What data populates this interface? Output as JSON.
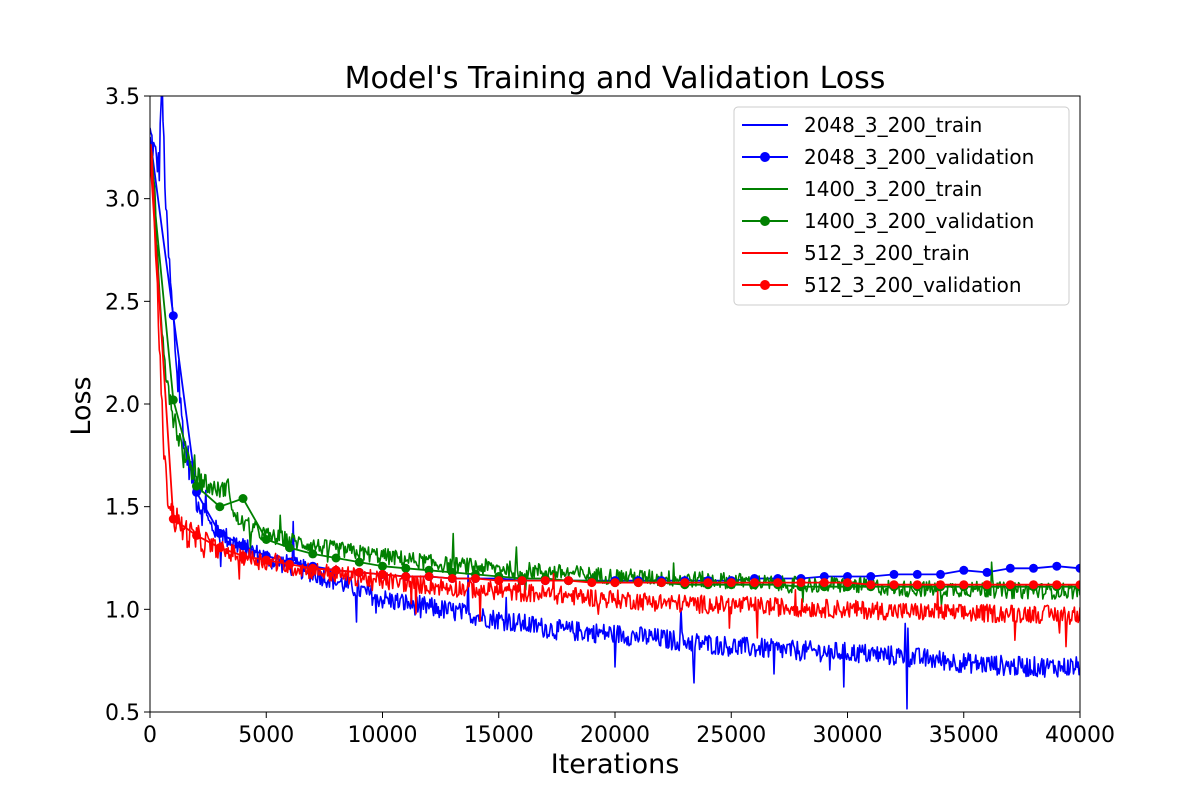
{
  "chart_data": {
    "type": "line",
    "title": "Model's Training and Validation Loss",
    "xlabel": "Iterations",
    "ylabel": "Loss",
    "xlim": [
      0,
      40000
    ],
    "ylim": [
      0.5,
      3.5
    ],
    "xticks": [
      0,
      5000,
      10000,
      15000,
      20000,
      25000,
      30000,
      35000,
      40000
    ],
    "xtick_labels": [
      "0",
      "5000",
      "10000",
      "15000",
      "20000",
      "25000",
      "30000",
      "35000",
      "40000"
    ],
    "yticks": [
      0.5,
      1.0,
      1.5,
      2.0,
      2.5,
      3.0,
      3.5
    ],
    "ytick_labels": [
      "0.5",
      "1.0",
      "1.5",
      "2.0",
      "2.5",
      "3.0",
      "3.5"
    ],
    "grid": false,
    "legend_position": "top-right",
    "series": [
      {
        "name": "2048_3_200_train",
        "color": "#0000ff",
        "marker": "none",
        "kind": "train",
        "noise": 0.05,
        "spikes": 0.16,
        "values": [
          [
            0,
            3.32
          ],
          [
            200,
            3.22
          ],
          [
            400,
            3.15
          ],
          [
            500,
            3.6
          ],
          [
            700,
            2.9
          ],
          [
            900,
            2.55
          ],
          [
            1200,
            2.1
          ],
          [
            1500,
            1.8
          ],
          [
            2000,
            1.55
          ],
          [
            2500,
            1.42
          ],
          [
            3000,
            1.37
          ],
          [
            4000,
            1.3
          ],
          [
            5000,
            1.25
          ],
          [
            7500,
            1.16
          ],
          [
            10000,
            1.05
          ],
          [
            12500,
            1.0
          ],
          [
            15000,
            0.95
          ],
          [
            17500,
            0.9
          ],
          [
            20000,
            0.88
          ],
          [
            22500,
            0.85
          ],
          [
            25000,
            0.82
          ],
          [
            27500,
            0.8
          ],
          [
            30000,
            0.79
          ],
          [
            32500,
            0.77
          ],
          [
            35000,
            0.74
          ],
          [
            37500,
            0.72
          ],
          [
            40000,
            0.72
          ]
        ]
      },
      {
        "name": "2048_3_200_validation",
        "color": "#0000ff",
        "marker": "circle",
        "kind": "validation",
        "values": [
          [
            0,
            3.3
          ],
          [
            1000,
            2.43
          ],
          [
            2000,
            1.57
          ],
          [
            3000,
            1.37
          ],
          [
            4000,
            1.31
          ],
          [
            5000,
            1.26
          ],
          [
            6000,
            1.23
          ],
          [
            7000,
            1.21
          ],
          [
            8000,
            1.19
          ],
          [
            9000,
            1.18
          ],
          [
            10000,
            1.17
          ],
          [
            11000,
            1.16
          ],
          [
            12000,
            1.16
          ],
          [
            13000,
            1.15
          ],
          [
            14000,
            1.15
          ],
          [
            15000,
            1.15
          ],
          [
            16000,
            1.14
          ],
          [
            17000,
            1.14
          ],
          [
            18000,
            1.14
          ],
          [
            19000,
            1.14
          ],
          [
            20000,
            1.14
          ],
          [
            21000,
            1.14
          ],
          [
            22000,
            1.14
          ],
          [
            23000,
            1.14
          ],
          [
            24000,
            1.14
          ],
          [
            25000,
            1.14
          ],
          [
            26000,
            1.15
          ],
          [
            27000,
            1.15
          ],
          [
            28000,
            1.15
          ],
          [
            29000,
            1.16
          ],
          [
            30000,
            1.16
          ],
          [
            31000,
            1.16
          ],
          [
            32000,
            1.17
          ],
          [
            33000,
            1.17
          ],
          [
            34000,
            1.17
          ],
          [
            35000,
            1.19
          ],
          [
            36000,
            1.18
          ],
          [
            37000,
            1.2
          ],
          [
            38000,
            1.2
          ],
          [
            39000,
            1.21
          ],
          [
            40000,
            1.2
          ]
        ]
      },
      {
        "name": "1400_3_200_train",
        "color": "#008000",
        "marker": "none",
        "kind": "train",
        "noise": 0.04,
        "spikes": 0.1,
        "values": [
          [
            0,
            3.28
          ],
          [
            200,
            3.0
          ],
          [
            400,
            2.55
          ],
          [
            700,
            2.15
          ],
          [
            1000,
            1.95
          ],
          [
            1500,
            1.72
          ],
          [
            2000,
            1.65
          ],
          [
            2500,
            1.6
          ],
          [
            3000,
            1.58
          ],
          [
            3400,
            1.6
          ],
          [
            3600,
            1.45
          ],
          [
            4000,
            1.42
          ],
          [
            5000,
            1.36
          ],
          [
            7500,
            1.3
          ],
          [
            10000,
            1.26
          ],
          [
            12500,
            1.22
          ],
          [
            15000,
            1.2
          ],
          [
            17500,
            1.18
          ],
          [
            20000,
            1.16
          ],
          [
            22500,
            1.15
          ],
          [
            25000,
            1.14
          ],
          [
            27500,
            1.12
          ],
          [
            30000,
            1.12
          ],
          [
            32500,
            1.1
          ],
          [
            35000,
            1.1
          ],
          [
            37500,
            1.09
          ],
          [
            40000,
            1.09
          ]
        ]
      },
      {
        "name": "1400_3_200_validation",
        "color": "#008000",
        "marker": "circle",
        "kind": "validation",
        "values": [
          [
            0,
            3.2
          ],
          [
            1000,
            2.02
          ],
          [
            2000,
            1.6
          ],
          [
            3000,
            1.5
          ],
          [
            4000,
            1.54
          ],
          [
            5000,
            1.34
          ],
          [
            6000,
            1.3
          ],
          [
            7000,
            1.27
          ],
          [
            8000,
            1.25
          ],
          [
            9000,
            1.23
          ],
          [
            10000,
            1.21
          ],
          [
            11000,
            1.2
          ],
          [
            12000,
            1.19
          ],
          [
            13000,
            1.18
          ],
          [
            14000,
            1.17
          ],
          [
            15000,
            1.16
          ],
          [
            16000,
            1.15
          ],
          [
            17000,
            1.15
          ],
          [
            18000,
            1.14
          ],
          [
            19000,
            1.14
          ],
          [
            20000,
            1.13
          ],
          [
            21000,
            1.13
          ],
          [
            22000,
            1.13
          ],
          [
            23000,
            1.12
          ],
          [
            24000,
            1.12
          ],
          [
            25000,
            1.12
          ],
          [
            26000,
            1.12
          ],
          [
            27000,
            1.12
          ],
          [
            28000,
            1.11
          ],
          [
            29000,
            1.11
          ],
          [
            30000,
            1.11
          ],
          [
            31000,
            1.11
          ],
          [
            32000,
            1.11
          ],
          [
            33000,
            1.11
          ],
          [
            34000,
            1.11
          ],
          [
            35000,
            1.11
          ],
          [
            36000,
            1.11
          ],
          [
            37000,
            1.11
          ],
          [
            38000,
            1.11
          ],
          [
            39000,
            1.11
          ],
          [
            40000,
            1.11
          ]
        ]
      },
      {
        "name": "512_3_200_train",
        "color": "#ff0000",
        "marker": "none",
        "kind": "train",
        "noise": 0.045,
        "spikes": 0.1,
        "values": [
          [
            0,
            3.22
          ],
          [
            100,
            3.15
          ],
          [
            300,
            2.6
          ],
          [
            500,
            2.0
          ],
          [
            700,
            1.6
          ],
          [
            1000,
            1.45
          ],
          [
            1500,
            1.38
          ],
          [
            2000,
            1.34
          ],
          [
            3000,
            1.29
          ],
          [
            4000,
            1.26
          ],
          [
            5000,
            1.23
          ],
          [
            7500,
            1.18
          ],
          [
            10000,
            1.14
          ],
          [
            12500,
            1.11
          ],
          [
            15000,
            1.09
          ],
          [
            17500,
            1.07
          ],
          [
            20000,
            1.05
          ],
          [
            22500,
            1.03
          ],
          [
            25000,
            1.02
          ],
          [
            27500,
            1.01
          ],
          [
            30000,
            1.0
          ],
          [
            32500,
            0.99
          ],
          [
            35000,
            0.98
          ],
          [
            37500,
            0.98
          ],
          [
            40000,
            0.97
          ]
        ]
      },
      {
        "name": "512_3_200_validation",
        "color": "#ff0000",
        "marker": "circle",
        "kind": "validation",
        "values": [
          [
            0,
            3.22
          ],
          [
            1000,
            1.44
          ],
          [
            2000,
            1.36
          ],
          [
            3000,
            1.3
          ],
          [
            4000,
            1.26
          ],
          [
            5000,
            1.24
          ],
          [
            6000,
            1.22
          ],
          [
            7000,
            1.2
          ],
          [
            8000,
            1.19
          ],
          [
            9000,
            1.18
          ],
          [
            10000,
            1.17
          ],
          [
            11000,
            1.16
          ],
          [
            12000,
            1.16
          ],
          [
            13000,
            1.15
          ],
          [
            14000,
            1.15
          ],
          [
            15000,
            1.14
          ],
          [
            16000,
            1.14
          ],
          [
            17000,
            1.14
          ],
          [
            18000,
            1.14
          ],
          [
            19000,
            1.13
          ],
          [
            20000,
            1.13
          ],
          [
            21000,
            1.13
          ],
          [
            22000,
            1.13
          ],
          [
            23000,
            1.13
          ],
          [
            24000,
            1.13
          ],
          [
            25000,
            1.13
          ],
          [
            26000,
            1.13
          ],
          [
            27000,
            1.13
          ],
          [
            28000,
            1.13
          ],
          [
            29000,
            1.13
          ],
          [
            30000,
            1.13
          ],
          [
            31000,
            1.12
          ],
          [
            32000,
            1.12
          ],
          [
            33000,
            1.12
          ],
          [
            34000,
            1.12
          ],
          [
            35000,
            1.12
          ],
          [
            36000,
            1.12
          ],
          [
            37000,
            1.12
          ],
          [
            38000,
            1.12
          ],
          [
            39000,
            1.12
          ],
          [
            40000,
            1.12
          ]
        ]
      }
    ]
  }
}
